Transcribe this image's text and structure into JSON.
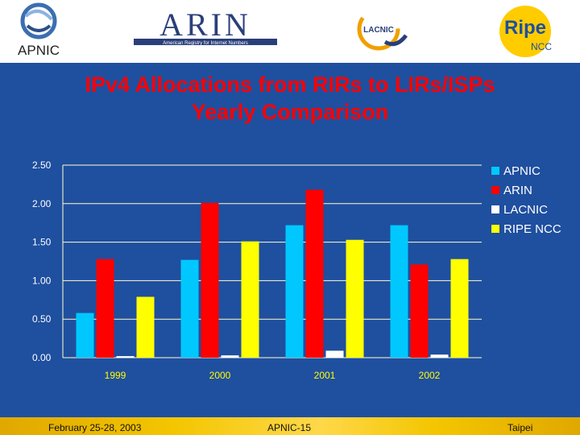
{
  "logos": {
    "apnic": "APNIC",
    "arin": "ARIN",
    "arin_tagline": "American Registry for Internet Numbers",
    "lacnic": "LACNIC",
    "ripe": "Ripe",
    "ripe_ncc": "NCC"
  },
  "slide": {
    "title_line1": "IPv4 Allocations from RIRs to LIRs/ISPs",
    "title_line2": "Yearly Comparison"
  },
  "footer": {
    "left": "February 25-28, 2003",
    "center": "APNIC-15",
    "right": "Taipei"
  },
  "chart_data": {
    "type": "bar",
    "title": "",
    "xlabel": "",
    "ylabel": "",
    "categories": [
      "1999",
      "2000",
      "2001",
      "2002"
    ],
    "ylim": [
      0,
      2.5
    ],
    "yticks": [
      "0.00",
      "0.50",
      "1.00",
      "1.50",
      "2.00",
      "2.50"
    ],
    "grid": true,
    "legend_position": "right",
    "series": [
      {
        "name": "APNIC",
        "color": "#00c8ff",
        "values": [
          0.58,
          1.27,
          1.72,
          1.72
        ]
      },
      {
        "name": "ARIN",
        "color": "#ff0000",
        "values": [
          1.28,
          2.01,
          2.18,
          1.21
        ]
      },
      {
        "name": "LACNIC",
        "color": "#ffffff",
        "values": [
          0.02,
          0.03,
          0.09,
          0.04
        ]
      },
      {
        "name": "RIPE NCC",
        "color": "#ffff00",
        "values": [
          0.79,
          1.51,
          1.53,
          1.28
        ]
      }
    ]
  }
}
